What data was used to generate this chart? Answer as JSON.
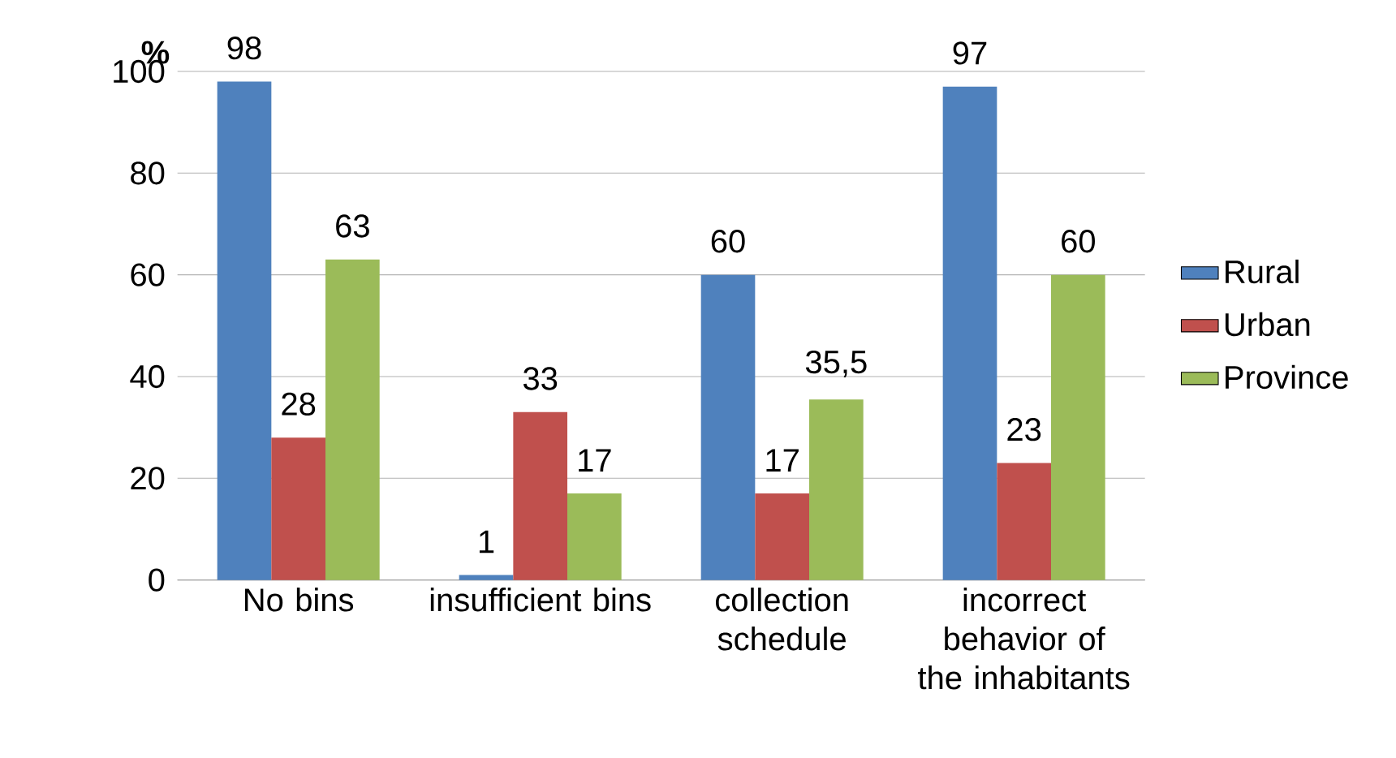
{
  "chart_data": {
    "type": "bar",
    "ylabel": "%",
    "categories": [
      "No bins",
      "insufficient bins",
      "collection schedule",
      "incorrect behavior of the inhabitants"
    ],
    "series": [
      {
        "name": "Rural",
        "color": "#4f81bd",
        "values": [
          98,
          1,
          60,
          97
        ],
        "value_labels": [
          "98",
          "1",
          "60",
          "97"
        ]
      },
      {
        "name": "Urban",
        "color": "#c0504d",
        "values": [
          28,
          33,
          17,
          23
        ],
        "value_labels": [
          "28",
          "33",
          "17",
          "23"
        ]
      },
      {
        "name": "Province",
        "color": "#9bbb59",
        "values": [
          63,
          17,
          35.5,
          60
        ],
        "value_labels": [
          "63",
          "17",
          "35,5",
          "60"
        ]
      }
    ],
    "ylim": [
      0,
      100
    ],
    "yticks": [
      0,
      20,
      40,
      60,
      80,
      100
    ],
    "grid": "y",
    "legend": "right"
  }
}
